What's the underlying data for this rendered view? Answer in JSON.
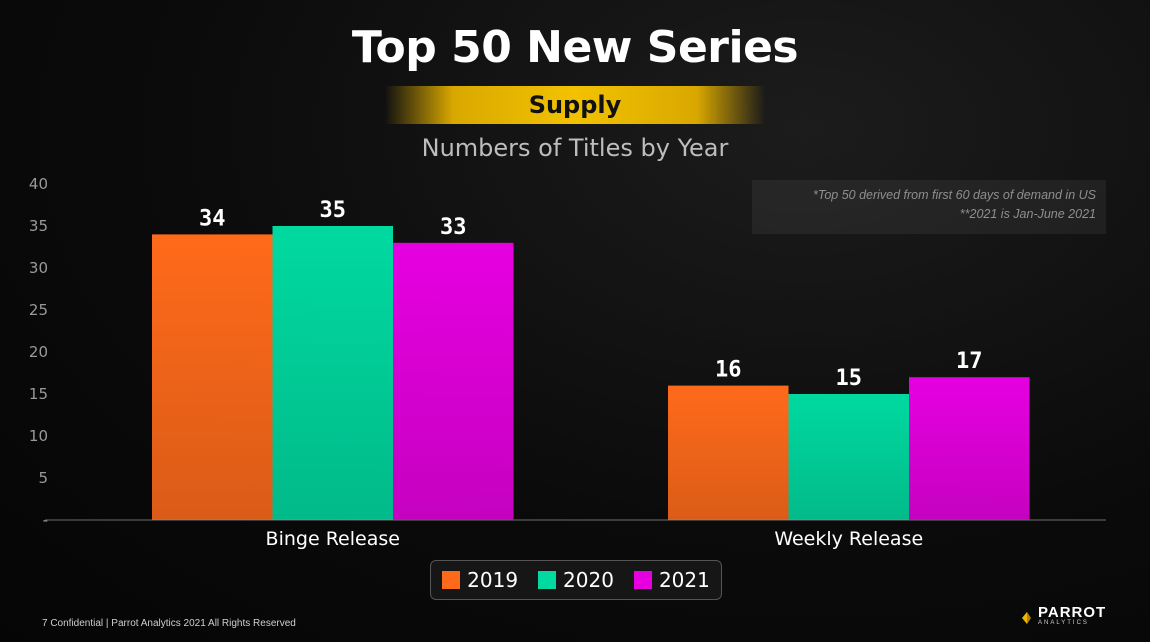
{
  "page": {
    "title": "Top 50 New Series",
    "subtitle": "Supply",
    "footer": "7  Confidential  |  Parrot Analytics 2021 All Rights Reserved",
    "note_line1": "*Top 50 derived from first 60 days of demand in US",
    "note_line2": "**2021 is Jan-June 2021",
    "logo_main": "PARROT",
    "logo_sub": "ANALYTICS"
  },
  "chart_data": {
    "type": "bar",
    "title": "Numbers of Titles by Year",
    "categories": [
      "Binge Release",
      "Weekly Release"
    ],
    "series": [
      {
        "name": "2019",
        "values": [
          34,
          16
        ],
        "color": "#ff6a1a"
      },
      {
        "name": "2020",
        "values": [
          35,
          15
        ],
        "color": "#00d9a0"
      },
      {
        "name": "2021",
        "values": [
          33,
          17
        ],
        "color": "#e600e0"
      }
    ],
    "yticks": [
      "-",
      "5",
      "10",
      "15",
      "20",
      "25",
      "30",
      "35",
      "40"
    ],
    "ylim": [
      0,
      40
    ],
    "grid": false,
    "legend": "bottom-center",
    "data_labels": true
  }
}
